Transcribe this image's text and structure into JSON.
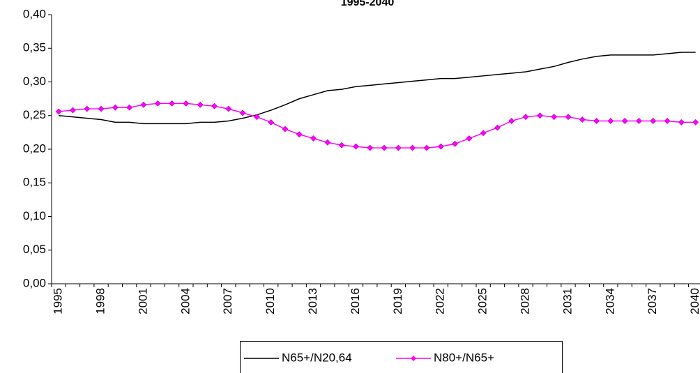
{
  "chart_data": {
    "type": "line",
    "title": "1995-2040",
    "categories": [
      "1995",
      null,
      null,
      "1998",
      null,
      null,
      "2001",
      null,
      null,
      "2004",
      null,
      null,
      "2007",
      null,
      null,
      "2010",
      null,
      null,
      "2013",
      null,
      null,
      "2016",
      null,
      null,
      "2019",
      null,
      null,
      "2022",
      null,
      null,
      "2025",
      null,
      null,
      "2028",
      null,
      null,
      "2031",
      null,
      null,
      "2034",
      null,
      null,
      "2037",
      null,
      null,
      "2040"
    ],
    "series": [
      {
        "name": "N65+/N20,64",
        "color": "#000000",
        "values": [
          0.25,
          0.248,
          0.246,
          0.244,
          0.24,
          0.24,
          0.238,
          0.238,
          0.238,
          0.238,
          0.24,
          0.24,
          0.242,
          0.246,
          0.251,
          0.258,
          0.266,
          0.275,
          0.281,
          0.287,
          0.289,
          0.293,
          0.295,
          0.297,
          0.299,
          0.301,
          0.303,
          0.305,
          0.305,
          0.307,
          0.309,
          0.311,
          0.313,
          0.315,
          0.319,
          0.323,
          0.329,
          0.334,
          0.338,
          0.34,
          0.34,
          0.34,
          0.34,
          0.342,
          0.344,
          0.344
        ]
      },
      {
        "name": "N80+/N65+",
        "color": "#ff00ff",
        "marker": "diamond",
        "values": [
          0.256,
          0.258,
          0.26,
          0.26,
          0.262,
          0.262,
          0.266,
          0.268,
          0.268,
          0.268,
          0.266,
          0.264,
          0.26,
          0.254,
          0.248,
          0.24,
          0.23,
          0.222,
          0.216,
          0.21,
          0.206,
          0.204,
          0.202,
          0.202,
          0.202,
          0.202,
          0.202,
          0.204,
          0.208,
          0.216,
          0.224,
          0.232,
          0.242,
          0.248,
          0.25,
          0.248,
          0.248,
          0.244,
          0.242,
          0.242,
          0.242,
          0.242,
          0.242,
          0.242,
          0.24,
          0.24
        ]
      }
    ],
    "ylim": [
      0,
      0.4
    ],
    "yticks": [
      {
        "value": 0,
        "label": "0,00"
      },
      {
        "value": 0.05,
        "label": "0,05"
      },
      {
        "value": 0.1,
        "label": "0,10"
      },
      {
        "value": 0.15,
        "label": "0,15"
      },
      {
        "value": 0.2,
        "label": "0,20"
      },
      {
        "value": 0.25,
        "label": "0,25"
      },
      {
        "value": 0.3,
        "label": "0,30"
      },
      {
        "value": 0.35,
        "label": "0,35"
      },
      {
        "value": 0.4,
        "label": "0,40"
      }
    ],
    "grid": false,
    "legend": "bottom"
  }
}
